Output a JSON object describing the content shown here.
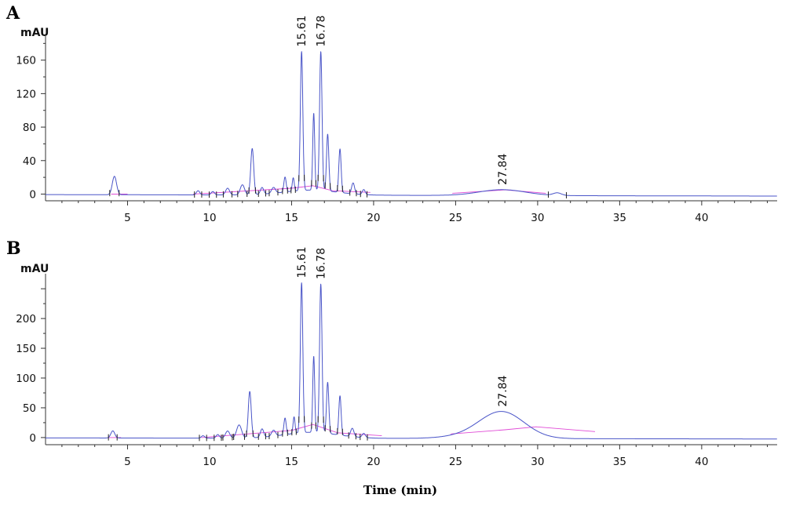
{
  "chart_data": [
    {
      "panel": "A",
      "type": "line",
      "ylabel": "mAU",
      "xlim": [
        0,
        44.6
      ],
      "ylim": [
        -8,
        185
      ],
      "yticks": [
        0,
        40,
        80,
        120,
        160
      ],
      "xticks": [
        5,
        10,
        15,
        20,
        25,
        30,
        35,
        40
      ],
      "color": "#4a55c8",
      "baseline_color": "#e04ad6",
      "peaks": [
        {
          "rt": 4.2,
          "height": 22,
          "width": 0.13
        },
        {
          "rt": 9.3,
          "height": 5,
          "width": 0.1
        },
        {
          "rt": 10.2,
          "height": 4,
          "width": 0.1
        },
        {
          "rt": 11.1,
          "height": 8,
          "width": 0.12
        },
        {
          "rt": 12.0,
          "height": 12,
          "width": 0.13
        },
        {
          "rt": 12.6,
          "height": 55,
          "width": 0.09
        },
        {
          "rt": 13.2,
          "height": 8,
          "width": 0.1
        },
        {
          "rt": 13.9,
          "height": 7,
          "width": 0.12
        },
        {
          "rt": 14.6,
          "height": 18,
          "width": 0.07
        },
        {
          "rt": 15.1,
          "height": 16,
          "width": 0.06
        },
        {
          "rt": 15.61,
          "height": 166,
          "width": 0.075
        },
        {
          "rt": 16.35,
          "height": 92,
          "width": 0.06
        },
        {
          "rt": 16.78,
          "height": 166,
          "width": 0.075
        },
        {
          "rt": 17.2,
          "height": 68,
          "width": 0.07
        },
        {
          "rt": 17.95,
          "height": 52,
          "width": 0.07
        },
        {
          "rt": 18.75,
          "height": 13,
          "width": 0.09
        },
        {
          "rt": 19.4,
          "height": 6,
          "width": 0.09
        },
        {
          "rt": 27.84,
          "height": 7,
          "width": 1.4
        },
        {
          "rt": 31.2,
          "height": 3,
          "width": 0.25
        }
      ],
      "baseline_segments": [
        [
          [
            4.0,
            0
          ],
          [
            5.0,
            0
          ]
        ],
        [
          [
            9.0,
            0
          ],
          [
            15.0,
            7
          ],
          [
            16.3,
            10
          ],
          [
            17.5,
            4
          ],
          [
            19.8,
            2
          ]
        ],
        [
          [
            24.8,
            1
          ],
          [
            28.0,
            5
          ],
          [
            30.5,
            1
          ]
        ]
      ],
      "annotations": [
        {
          "text": "15.61",
          "x": 15.61
        },
        {
          "text": "16.78",
          "x": 16.78
        },
        {
          "text": "27.84",
          "x": 27.84
        }
      ]
    },
    {
      "panel": "B",
      "type": "line",
      "ylabel": "mAU",
      "xlim": [
        0,
        44.6
      ],
      "ylim": [
        -12,
        270
      ],
      "yticks": [
        0,
        50,
        100,
        150,
        200
      ],
      "xticks": [
        5,
        10,
        15,
        20,
        25,
        30,
        35,
        40
      ],
      "xlabel": "Time (min)",
      "color": "#4a55c8",
      "baseline_color": "#e04ad6",
      "peaks": [
        {
          "rt": 4.1,
          "height": 12,
          "width": 0.12
        },
        {
          "rt": 9.6,
          "height": 4,
          "width": 0.1
        },
        {
          "rt": 10.5,
          "height": 6,
          "width": 0.1
        },
        {
          "rt": 11.1,
          "height": 12,
          "width": 0.13
        },
        {
          "rt": 11.8,
          "height": 22,
          "width": 0.15
        },
        {
          "rt": 12.45,
          "height": 78,
          "width": 0.09
        },
        {
          "rt": 13.2,
          "height": 14,
          "width": 0.1
        },
        {
          "rt": 13.9,
          "height": 10,
          "width": 0.12
        },
        {
          "rt": 14.6,
          "height": 28,
          "width": 0.07
        },
        {
          "rt": 15.15,
          "height": 28,
          "width": 0.06
        },
        {
          "rt": 15.61,
          "height": 252,
          "width": 0.075
        },
        {
          "rt": 16.35,
          "height": 128,
          "width": 0.06
        },
        {
          "rt": 16.78,
          "height": 250,
          "width": 0.075
        },
        {
          "rt": 17.2,
          "height": 86,
          "width": 0.07
        },
        {
          "rt": 17.95,
          "height": 66,
          "width": 0.07
        },
        {
          "rt": 18.7,
          "height": 14,
          "width": 0.1
        },
        {
          "rt": 19.4,
          "height": 7,
          "width": 0.1
        },
        {
          "rt": 27.84,
          "height": 44,
          "width": 1.35
        },
        {
          "rt": 25.8,
          "height": 4,
          "width": 1.5
        }
      ],
      "baseline_segments": [
        [
          [
            3.8,
            0
          ],
          [
            4.6,
            0
          ]
        ],
        [
          [
            9.5,
            0
          ],
          [
            15.0,
            12
          ],
          [
            16.3,
            22
          ],
          [
            17.8,
            8
          ],
          [
            20.5,
            3
          ]
        ],
        [
          [
            24.7,
            6
          ],
          [
            28.0,
            13
          ],
          [
            29.9,
            18
          ],
          [
            33.5,
            10
          ]
        ]
      ],
      "annotations": [
        {
          "text": "15.61",
          "x": 15.61
        },
        {
          "text": "16.78",
          "x": 16.78
        },
        {
          "text": "27.84",
          "x": 27.84
        }
      ]
    }
  ]
}
